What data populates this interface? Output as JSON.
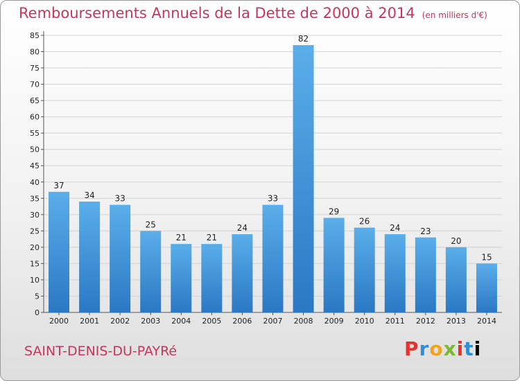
{
  "header": {
    "title": "Remboursements Annuels de la Dette de 2000 à 2014",
    "unit": "(en milliers d'€)"
  },
  "footer": {
    "commune": "SAINT-DENIS-DU-PAYRé",
    "logo": "Proxiti"
  },
  "chart_data": {
    "type": "bar",
    "categories": [
      "2000",
      "2001",
      "2002",
      "2003",
      "2004",
      "2005",
      "2006",
      "2007",
      "2008",
      "2009",
      "2010",
      "2011",
      "2012",
      "2013",
      "2014"
    ],
    "values": [
      37,
      34,
      33,
      25,
      21,
      21,
      24,
      33,
      82,
      29,
      26,
      24,
      23,
      20,
      15
    ],
    "ylim": [
      0,
      85
    ],
    "yticks": [
      0,
      5,
      10,
      15,
      20,
      25,
      30,
      35,
      40,
      45,
      50,
      55,
      60,
      65,
      70,
      75,
      80,
      85
    ],
    "grid": true,
    "bar_color": "#3a8fd8"
  }
}
